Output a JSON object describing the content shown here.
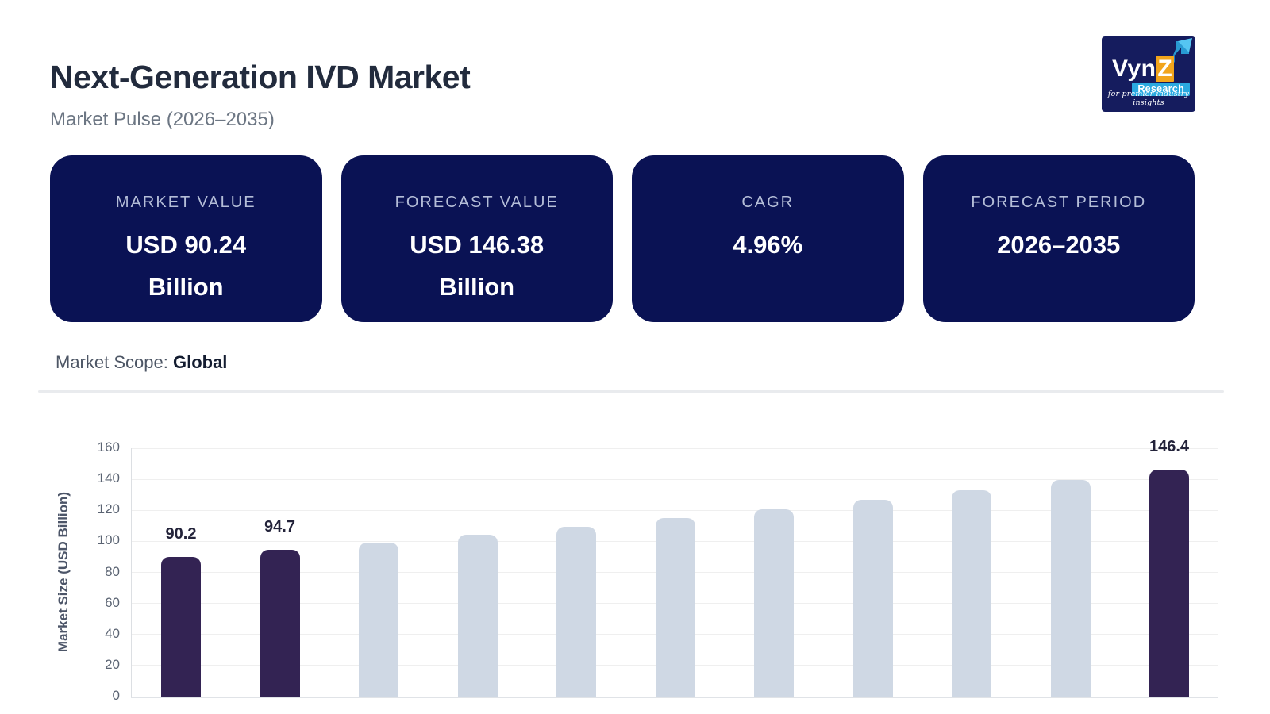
{
  "header": {
    "title": "Next-Generation IVD Market",
    "subtitle": "Market Pulse (2026–2035)"
  },
  "logo": {
    "brand": "Vyn",
    "brand_accent": "Z",
    "sub_brand": "Research",
    "tagline": "for premier industry insights",
    "bg_color": "#151c5e",
    "accent_cyan": "#2aa9e0",
    "accent_yellow": "#f2a51c"
  },
  "stat_cards": [
    {
      "label": "MARKET VALUE",
      "value": "USD 90.24 Billion"
    },
    {
      "label": "FORECAST VALUE",
      "value": "USD 146.38 Billion"
    },
    {
      "label": "CAGR",
      "value": "4.96%"
    },
    {
      "label": "FORECAST PERIOD",
      "value": "2026–2035"
    }
  ],
  "card_theme": {
    "bg": "#0a1254",
    "label_color": "#b5bed8",
    "value_color": "#ffffff"
  },
  "market_scope": {
    "label": "Market Scope:",
    "value": "Global"
  },
  "chart_data": {
    "type": "bar",
    "title": "",
    "xlabel": "",
    "ylabel": "Market Size (USD Billion)",
    "ylim": [
      0,
      160
    ],
    "yticks": [
      0,
      20,
      40,
      60,
      80,
      100,
      120,
      140,
      160
    ],
    "grid": true,
    "x_axis_labels_visible": false,
    "values": [
      90.2,
      94.7,
      99.4,
      104.4,
      109.5,
      114.9,
      120.7,
      126.7,
      132.9,
      139.5,
      146.4
    ],
    "value_labels": [
      "90.2",
      "94.7",
      "",
      "",
      "",
      "",
      "",
      "",
      "",
      "",
      "146.4"
    ],
    "highlight_indices": [
      0,
      1,
      10
    ],
    "colors": {
      "highlight_bar": "#332353",
      "base_bar": "#cfd8e4",
      "gridline": "#efefef",
      "axis_line": "#dcdfe3",
      "baseline": "#e0e3e7",
      "tick_text": "#5a6372",
      "value_label": "#23233a"
    }
  }
}
